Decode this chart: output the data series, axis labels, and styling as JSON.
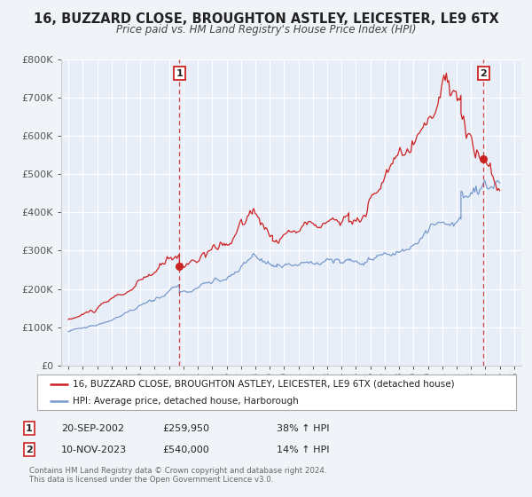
{
  "title": "16, BUZZARD CLOSE, BROUGHTON ASTLEY, LEICESTER, LE9 6TX",
  "subtitle": "Price paid vs. HM Land Registry's House Price Index (HPI)",
  "bg_color": "#f0f4f8",
  "plot_bg_color": "#e8eef8",
  "grid_color": "#ffffff",
  "red_color": "#cc2222",
  "blue_color": "#7799cc",
  "marker1_date_x": 2002.72,
  "marker1_red_y": 259950,
  "marker2_date_x": 2023.86,
  "marker2_red_y": 540000,
  "ylim": [
    0,
    800000
  ],
  "xlim": [
    1994.5,
    2026.5
  ],
  "yticks": [
    0,
    100000,
    200000,
    300000,
    400000,
    500000,
    600000,
    700000,
    800000
  ],
  "ytick_labels": [
    "£0",
    "£100K",
    "£200K",
    "£300K",
    "£400K",
    "£500K",
    "£600K",
    "£700K",
    "£800K"
  ],
  "xticks": [
    1995,
    1996,
    1997,
    1998,
    1999,
    2000,
    2001,
    2002,
    2003,
    2004,
    2005,
    2006,
    2007,
    2008,
    2009,
    2010,
    2011,
    2012,
    2013,
    2014,
    2015,
    2016,
    2017,
    2018,
    2019,
    2020,
    2021,
    2022,
    2023,
    2024,
    2025,
    2026
  ],
  "legend_label_red": "16, BUZZARD CLOSE, BROUGHTON ASTLEY, LEICESTER, LE9 6TX (detached house)",
  "legend_label_blue": "HPI: Average price, detached house, Harborough",
  "annotation1_label": "1",
  "annotation1_date": "20-SEP-2002",
  "annotation1_price": "£259,950",
  "annotation1_hpi": "38% ↑ HPI",
  "annotation2_label": "2",
  "annotation2_date": "10-NOV-2023",
  "annotation2_price": "£540,000",
  "annotation2_hpi": "14% ↑ HPI",
  "footer1": "Contains HM Land Registry data © Crown copyright and database right 2024.",
  "footer2": "This data is licensed under the Open Government Licence v3.0."
}
